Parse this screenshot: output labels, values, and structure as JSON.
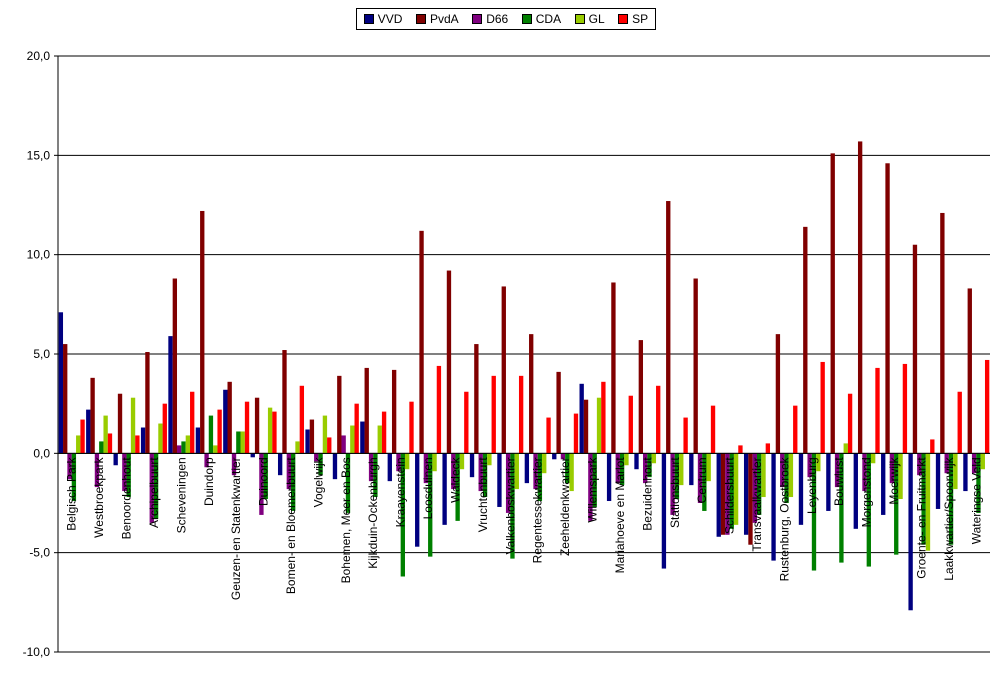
{
  "chart_data": {
    "type": "bar",
    "title": "",
    "xlabel": "",
    "ylabel": "",
    "ylim": [
      -10,
      20
    ],
    "yticks": [
      "20,0",
      "15,0",
      "10,0",
      "5,0",
      "0,0",
      "-5,0",
      "-10,0"
    ],
    "grid": true,
    "legend_position": "top-center",
    "categories": [
      "Belgisch Park",
      "Westbroekpark",
      "Benoordenhout",
      "Archipelbuurt",
      "Scheveningen",
      "Duindorp",
      "Geuzen- en Statenkwartier",
      "Duinoord",
      "Bomen- en Bloemenbuurt",
      "Vogelwijk",
      "Bohemen, Meer en Bos",
      "Kijkduin-Ockenburgh",
      "Kraayenstein",
      "Loosduinen",
      "Waldeck",
      "Vruchtenbuurt",
      "Valkenboskwartier",
      "Regentessekwartier",
      "Zeeheldenkwartier",
      "Willemspark",
      "Mariahoeve en Marlot",
      "Bezuidenhout",
      "Stationsbuurt",
      "Centrum",
      "Schildersbuurt",
      "Transvaalkwartier",
      "Rustenburg, Oostbroek",
      "Leyenburg",
      "Bouwlust",
      "Morgenstond",
      "Moerwijk",
      "Groente- en Fruitmarkt",
      "Laakkwartier/Spoorwijk",
      "Wateringse Veld"
    ],
    "series": [
      {
        "name": "VVD",
        "color": "#000080",
        "values": [
          7.1,
          2.2,
          -0.6,
          1.3,
          5.9,
          1.3,
          3.2,
          -0.2,
          -1.1,
          1.2,
          -1.3,
          1.6,
          -1.4,
          -4.7,
          -3.6,
          -1.2,
          -2.7,
          -1.5,
          -0.3,
          3.5,
          -2.4,
          -0.8,
          -5.8,
          -1.6,
          -4.2,
          -4.1,
          -5.4,
          -3.6,
          -2.9,
          -3.8,
          -3.1,
          -7.9,
          -2.8,
          -1.9
        ]
      },
      {
        "name": "PvdA",
        "color": "#800000",
        "values": [
          5.5,
          3.8,
          3.0,
          5.1,
          8.8,
          12.2,
          3.6,
          2.8,
          5.2,
          1.7,
          3.9,
          4.3,
          4.2,
          11.2,
          9.2,
          5.5,
          8.4,
          6.0,
          4.1,
          2.7,
          8.6,
          5.7,
          12.7,
          8.8,
          -4.1,
          -4.6,
          6.0,
          11.4,
          15.1,
          15.7,
          14.6,
          10.5,
          12.1,
          8.3
        ]
      },
      {
        "name": "D66",
        "color": "#800080",
        "values": [
          -1.3,
          -1.7,
          -1.9,
          -3.5,
          0.4,
          -0.7,
          -1.1,
          -3.1,
          -1.8,
          -0.4,
          0.9,
          -1.4,
          -0.9,
          -1.5,
          -1.8,
          -1.9,
          -3.0,
          -1.8,
          -0.3,
          -3.4,
          -1.5,
          -1.5,
          -3.1,
          -2.5,
          -4.1,
          -3.5,
          -1.7,
          -1.2,
          -1.7,
          -1.9,
          -1.5,
          -1.1,
          -1.0,
          -1.0
        ]
      },
      {
        "name": "CDA",
        "color": "#008000",
        "values": [
          -2.4,
          0.6,
          -2.2,
          -3.3,
          0.6,
          1.9,
          1.1,
          -2.3,
          -2.9,
          -1.1,
          -3.0,
          -2.2,
          -6.2,
          -5.2,
          -3.4,
          -2.2,
          -5.3,
          -2.4,
          -1.5,
          -2.7,
          -1.6,
          -1.2,
          -2.3,
          -2.9,
          -3.8,
          -3.1,
          -2.5,
          -5.9,
          -5.5,
          -5.7,
          -5.1,
          -4.6,
          -4.6,
          -3.0
        ]
      },
      {
        "name": "GL",
        "color": "#99cc00",
        "values": [
          0.9,
          1.9,
          2.8,
          1.5,
          0.9,
          0.4,
          1.1,
          2.3,
          0.6,
          1.9,
          1.4,
          1.4,
          -0.8,
          -0.9,
          -0.8,
          -0.6,
          -1.8,
          -1.0,
          -1.9,
          2.8,
          -0.6,
          -0.5,
          -1.6,
          -1.4,
          -3.6,
          -2.2,
          -2.2,
          -0.9,
          0.5,
          -0.5,
          -2.3,
          -4.9,
          -1.8,
          -0.8
        ]
      },
      {
        "name": "SP",
        "color": "#ff0000",
        "values": [
          1.7,
          1.0,
          0.9,
          2.5,
          3.1,
          2.2,
          2.6,
          2.1,
          3.4,
          0.8,
          2.5,
          2.1,
          2.6,
          4.4,
          3.1,
          3.9,
          3.9,
          1.8,
          2.0,
          3.6,
          2.9,
          3.4,
          1.8,
          2.4,
          0.4,
          0.5,
          2.4,
          4.6,
          3.0,
          4.3,
          4.5,
          0.7,
          3.1,
          4.7
        ]
      }
    ]
  }
}
